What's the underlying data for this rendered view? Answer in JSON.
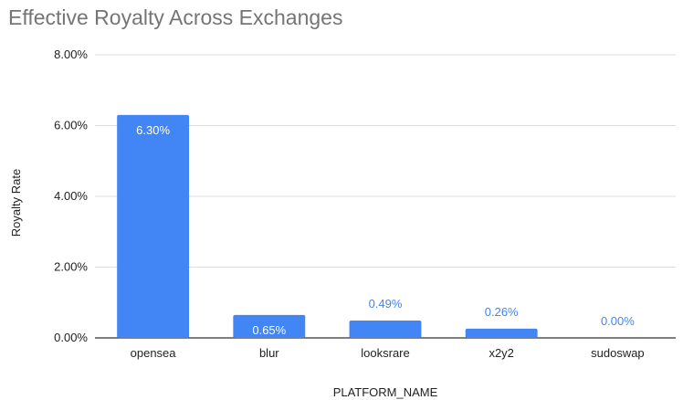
{
  "chart_data": {
    "type": "bar",
    "title": "Effective Royalty Across Exchanges",
    "xlabel": "PLATFORM_NAME",
    "ylabel": "Royalty Rate",
    "categories": [
      "opensea",
      "blur",
      "looksrare",
      "x2y2",
      "sudoswap"
    ],
    "values": [
      6.3,
      0.65,
      0.49,
      0.26,
      0.0
    ],
    "data_labels": [
      "6.30%",
      "0.65%",
      "0.49%",
      "0.26%",
      "0.00%"
    ],
    "yticks": [
      "0.00%",
      "2.00%",
      "4.00%",
      "6.00%",
      "8.00%"
    ],
    "ylim": [
      0,
      8
    ],
    "grid": true,
    "legend": "none",
    "colors": {
      "bar": "#4285f4",
      "label_inside": "#ffffff",
      "label_outside": "#4285f4",
      "grid": "#dddddd",
      "baseline": "#333333"
    }
  }
}
